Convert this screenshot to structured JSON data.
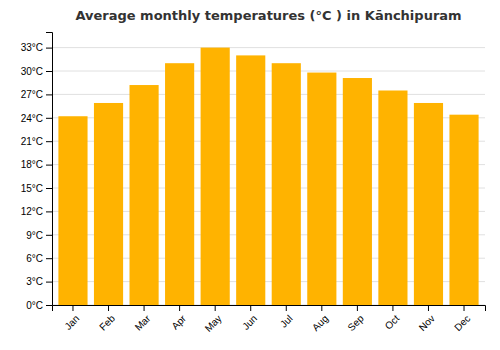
{
  "chart_data": {
    "type": "bar",
    "title": "Average monthly temperatures (°C ) in Kānchipuram",
    "categories": [
      "Jan",
      "Feb",
      "Mar",
      "Apr",
      "May",
      "Jun",
      "Jul",
      "Aug",
      "Sep",
      "Oct",
      "Nov",
      "Dec"
    ],
    "values": [
      24.2,
      25.9,
      28.2,
      31.0,
      33.0,
      32.0,
      31.0,
      29.8,
      29.1,
      27.5,
      25.9,
      24.4
    ],
    "color": "#FFB300",
    "ylim": [
      0,
      35
    ],
    "yticks": [
      {
        "value": 0,
        "label": "0°C"
      },
      {
        "value": 3,
        "label": "3°C"
      },
      {
        "value": 6,
        "label": "6°C"
      },
      {
        "value": 9,
        "label": "9°C"
      },
      {
        "value": 12,
        "label": "12°C"
      },
      {
        "value": 15,
        "label": "15°C"
      },
      {
        "value": 18,
        "label": "18°C"
      },
      {
        "value": 21,
        "label": "21°C"
      },
      {
        "value": 24,
        "label": "24°C"
      },
      {
        "value": 27,
        "label": "27°C"
      },
      {
        "value": 30,
        "label": "30°C"
      },
      {
        "value": 33,
        "label": "33°C"
      }
    ],
    "grid": true
  }
}
